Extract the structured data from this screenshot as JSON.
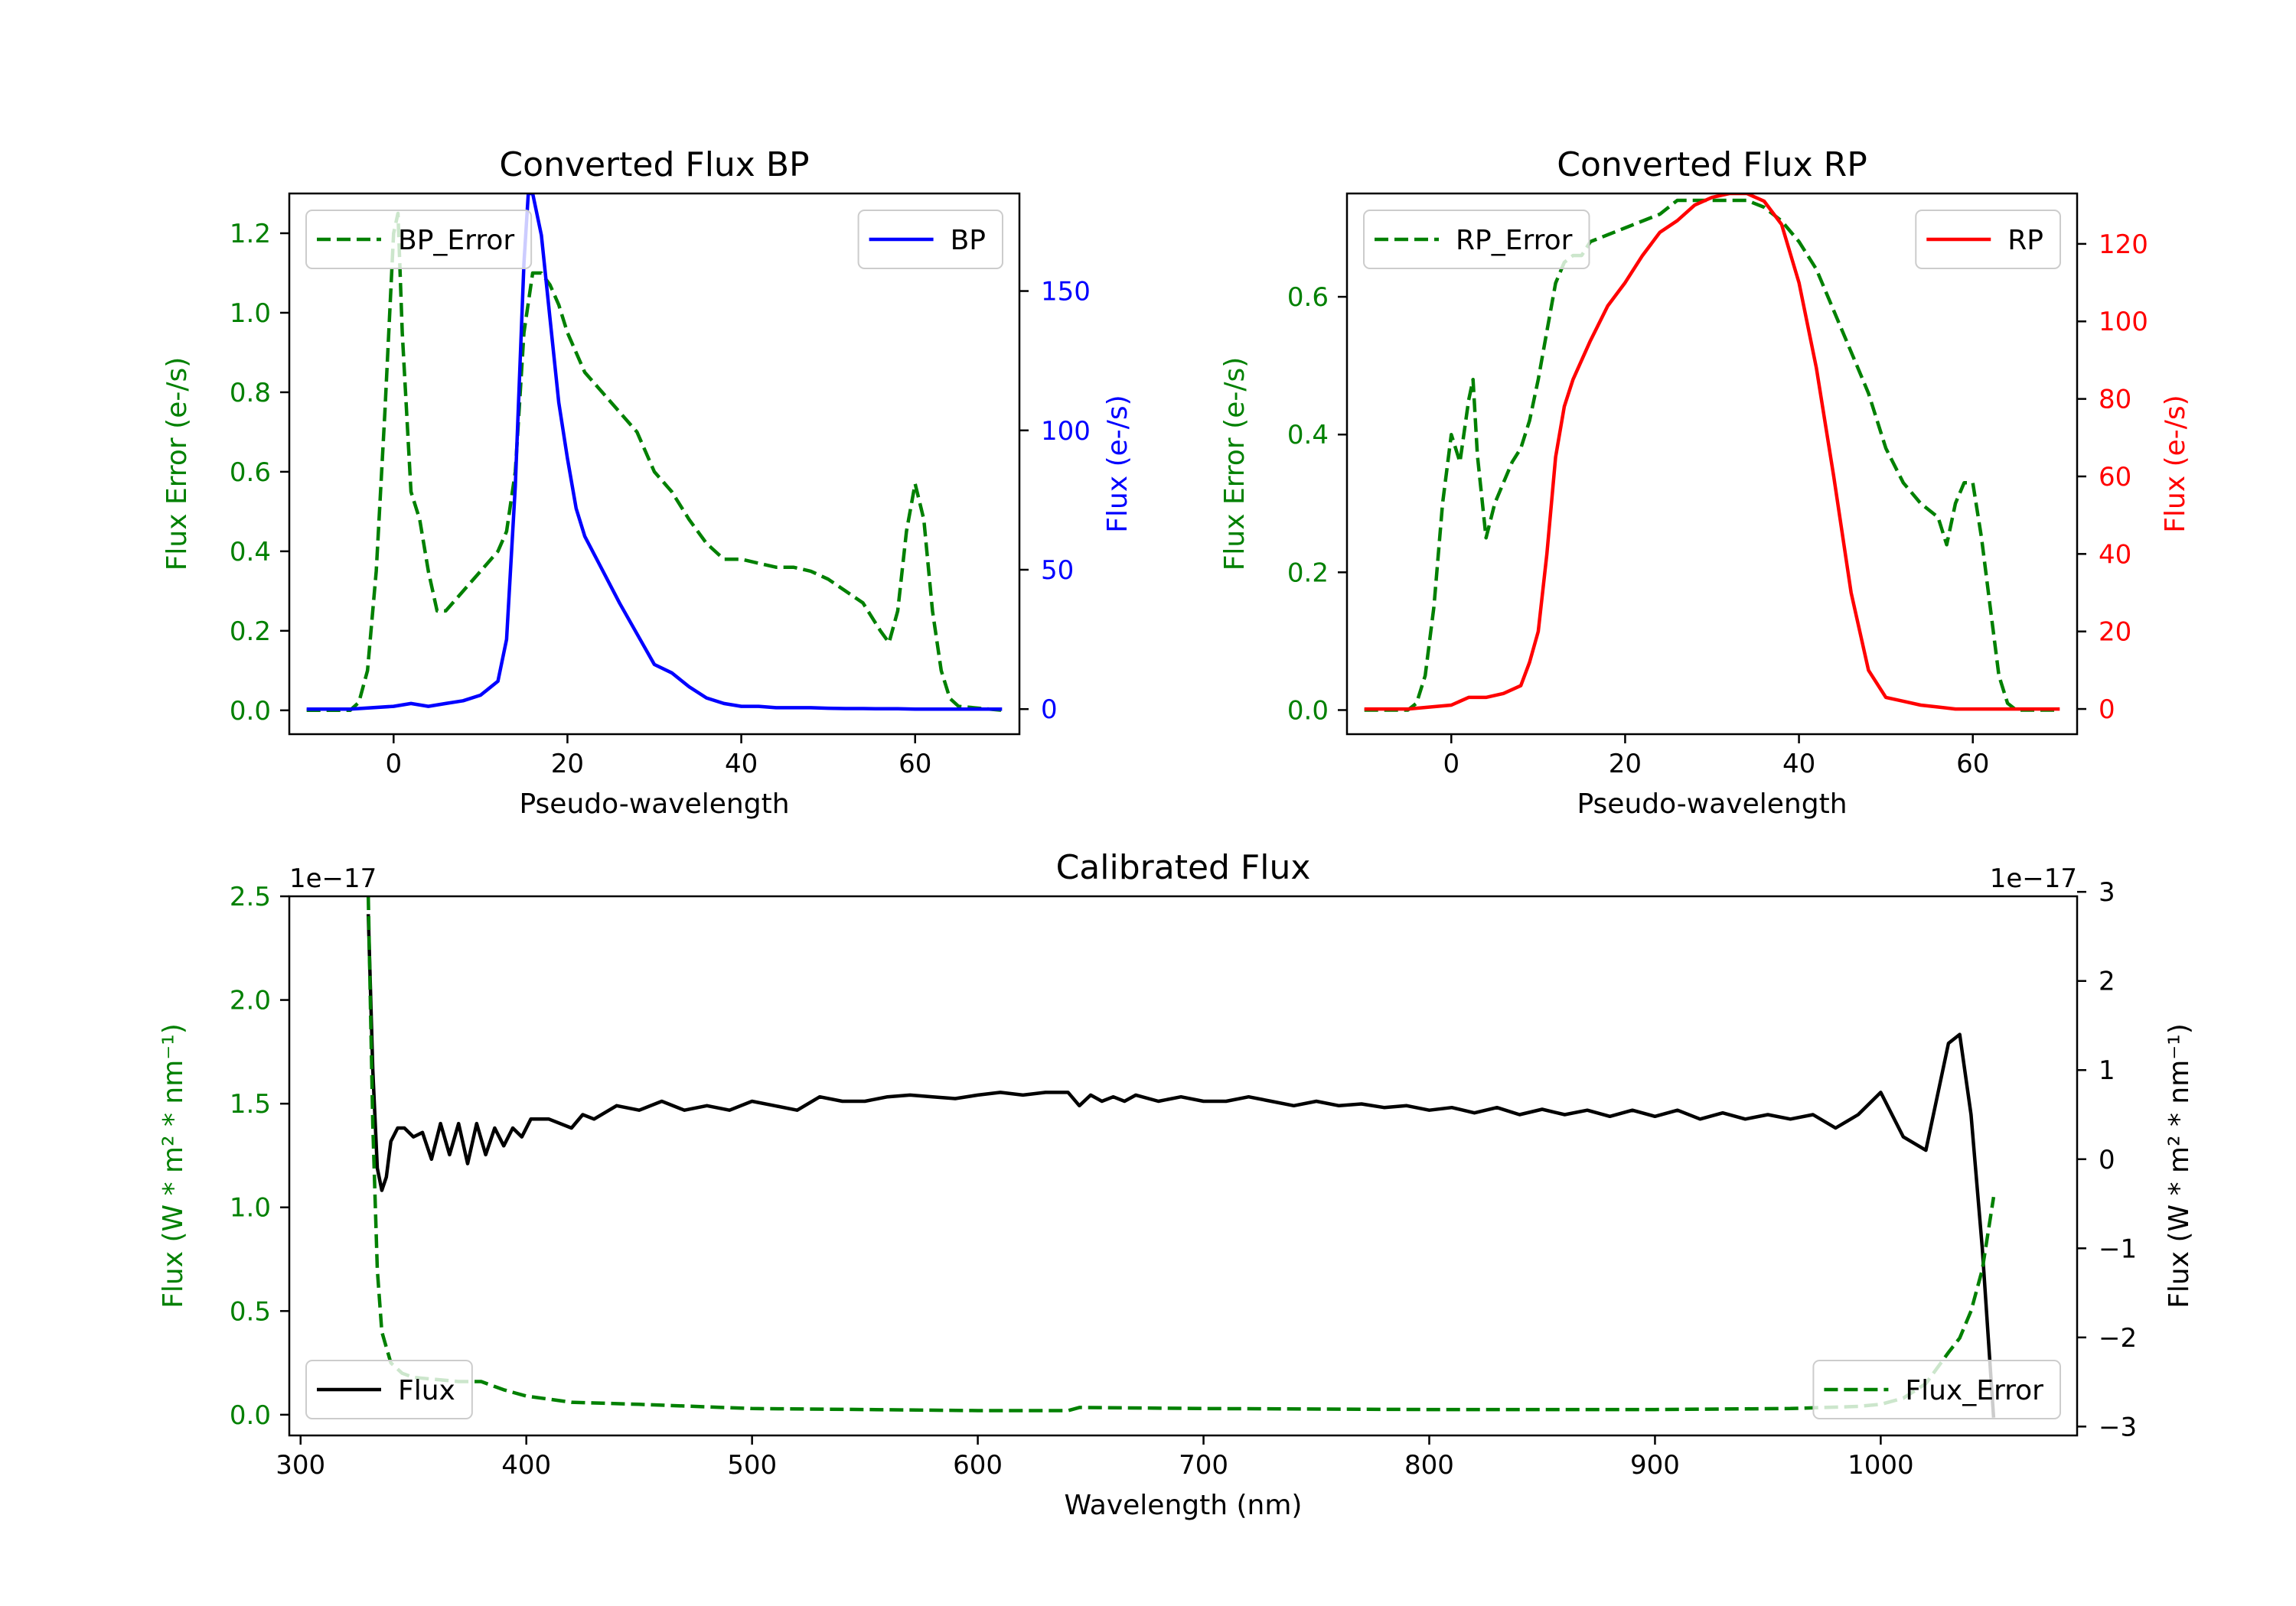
{
  "colors": {
    "green": "#008000",
    "blue": "#0000ff",
    "red": "#ff0000",
    "black": "#000000"
  },
  "chart_data": [
    {
      "type": "line",
      "title": "Converted Flux BP",
      "xlabel": "Pseudo-wavelength",
      "ylabel_left": "Flux Error (e-/s)",
      "ylabel_right": "Flux (e-/s)",
      "xlim": [
        -12,
        72
      ],
      "ylim_left": [
        -0.06,
        1.3
      ],
      "ylim_right": [
        -9,
        185
      ],
      "xticks": [
        0,
        20,
        40,
        60
      ],
      "xtick_labels": [
        "0",
        "20",
        "40",
        "60"
      ],
      "yticks_left": [
        0.0,
        0.2,
        0.4,
        0.6,
        0.8,
        1.0,
        1.2
      ],
      "ytick_labels_left": [
        "0.0",
        "0.2",
        "0.4",
        "0.6",
        "0.8",
        "1.0",
        "1.2"
      ],
      "yticks_right": [
        0,
        50,
        100,
        150
      ],
      "ytick_labels_right": [
        "0",
        "50",
        "100",
        "150"
      ],
      "legend_left": "BP_Error",
      "legend_right": "BP",
      "series": [
        {
          "name": "BP_Error",
          "axis": "left",
          "style": "dashed",
          "color": "#008000",
          "x": [
            -10,
            -5,
            -4,
            -3,
            -2,
            -1,
            0,
            0.5,
            1,
            2,
            3,
            4,
            5,
            6,
            8,
            10,
            12,
            13,
            14,
            15,
            16,
            17,
            18,
            19,
            20,
            22,
            24,
            26,
            28,
            30,
            32,
            34,
            36,
            38,
            40,
            42,
            44,
            46,
            48,
            50,
            52,
            54,
            56,
            57,
            58,
            59,
            60,
            61,
            62,
            63,
            64,
            65,
            70
          ],
          "values": [
            0,
            0,
            0.02,
            0.1,
            0.35,
            0.75,
            1.2,
            1.25,
            0.95,
            0.55,
            0.48,
            0.35,
            0.25,
            0.25,
            0.3,
            0.35,
            0.4,
            0.45,
            0.6,
            0.95,
            1.1,
            1.1,
            1.07,
            1.02,
            0.95,
            0.85,
            0.8,
            0.75,
            0.7,
            0.6,
            0.55,
            0.48,
            0.42,
            0.38,
            0.38,
            0.37,
            0.36,
            0.36,
            0.35,
            0.33,
            0.3,
            0.27,
            0.2,
            0.17,
            0.25,
            0.45,
            0.57,
            0.48,
            0.25,
            0.1,
            0.03,
            0.01,
            0
          ]
        },
        {
          "name": "BP",
          "axis": "right",
          "style": "solid",
          "color": "#0000ff",
          "x": [
            -10,
            -5,
            0,
            2,
            4,
            6,
            8,
            10,
            12,
            13,
            14,
            15,
            15.5,
            16,
            17,
            18,
            19,
            20,
            21,
            22,
            24,
            26,
            28,
            30,
            32,
            34,
            36,
            38,
            40,
            42,
            44,
            46,
            48,
            50,
            52,
            54,
            56,
            58,
            60,
            62,
            65,
            70
          ],
          "values": [
            0,
            0,
            1,
            2,
            1,
            2,
            3,
            5,
            10,
            25,
            80,
            160,
            185,
            185,
            170,
            140,
            110,
            90,
            72,
            62,
            50,
            38,
            27,
            16,
            13,
            8,
            4,
            2,
            1,
            1,
            0.5,
            0.5,
            0.5,
            0.3,
            0.2,
            0.2,
            0.1,
            0.1,
            0,
            0,
            0,
            0
          ]
        }
      ]
    },
    {
      "type": "line",
      "title": "Converted Flux RP",
      "xlabel": "Pseudo-wavelength",
      "ylabel_left": "Flux Error (e-/s)",
      "ylabel_right": "Flux (e-/s)",
      "xlim": [
        -12,
        72
      ],
      "ylim_left": [
        -0.035,
        0.75
      ],
      "ylim_right": [
        -6.5,
        133
      ],
      "xticks": [
        0,
        20,
        40,
        60
      ],
      "xtick_labels": [
        "0",
        "20",
        "40",
        "60"
      ],
      "yticks_left": [
        0.0,
        0.2,
        0.4,
        0.6
      ],
      "ytick_labels_left": [
        "0.0",
        "0.2",
        "0.4",
        "0.6"
      ],
      "yticks_right": [
        0,
        20,
        40,
        60,
        80,
        100,
        120
      ],
      "ytick_labels_right": [
        "0",
        "20",
        "40",
        "60",
        "80",
        "100",
        "120"
      ],
      "legend_left": "RP_Error",
      "legend_right": "RP",
      "series": [
        {
          "name": "RP_Error",
          "axis": "left",
          "style": "dashed",
          "color": "#008000",
          "x": [
            -10,
            -5,
            -4,
            -3,
            -2,
            -1,
            0,
            1,
            2,
            2.5,
            3,
            4,
            5,
            6,
            7,
            8,
            9,
            10,
            11,
            12,
            13,
            14,
            15,
            16,
            18,
            20,
            22,
            24,
            26,
            28,
            30,
            32,
            34,
            36,
            38,
            40,
            42,
            44,
            46,
            48,
            50,
            52,
            54,
            56,
            57,
            58,
            59,
            60,
            61,
            62,
            63,
            64,
            65,
            70
          ],
          "values": [
            0,
            0,
            0.01,
            0.05,
            0.15,
            0.3,
            0.4,
            0.36,
            0.45,
            0.48,
            0.37,
            0.25,
            0.3,
            0.33,
            0.36,
            0.38,
            0.42,
            0.48,
            0.55,
            0.62,
            0.65,
            0.66,
            0.66,
            0.68,
            0.69,
            0.7,
            0.71,
            0.72,
            0.74,
            0.74,
            0.74,
            0.74,
            0.74,
            0.73,
            0.71,
            0.68,
            0.64,
            0.58,
            0.52,
            0.46,
            0.38,
            0.33,
            0.3,
            0.28,
            0.24,
            0.3,
            0.33,
            0.33,
            0.25,
            0.15,
            0.05,
            0.01,
            0,
            0
          ]
        },
        {
          "name": "RP",
          "axis": "right",
          "style": "solid",
          "color": "#ff0000",
          "x": [
            -10,
            -5,
            0,
            2,
            4,
            6,
            8,
            9,
            10,
            11,
            12,
            13,
            14,
            16,
            18,
            20,
            22,
            24,
            26,
            28,
            30,
            32,
            34,
            36,
            38,
            40,
            42,
            44,
            46,
            48,
            50,
            52,
            54,
            56,
            58,
            60,
            65,
            70
          ],
          "values": [
            0,
            0,
            1,
            3,
            3,
            4,
            6,
            12,
            20,
            40,
            65,
            78,
            85,
            95,
            104,
            110,
            117,
            123,
            126,
            130,
            132,
            133,
            133,
            131,
            125,
            110,
            88,
            60,
            30,
            10,
            3,
            2,
            1,
            0.5,
            0,
            0,
            0,
            0
          ]
        }
      ]
    },
    {
      "type": "line",
      "title": "Calibrated Flux",
      "xlabel": "Wavelength (nm)",
      "ylabel_left": "Flux (W * m² * nm⁻¹)",
      "ylabel_right": "Flux (W * m² * nm⁻¹)",
      "offset_left": "1e−17",
      "offset_right": "1e−17",
      "xlim": [
        295,
        1087
      ],
      "ylim_left": [
        -0.1,
        2.5
      ],
      "ylim_right": [
        -3.1,
        2.95
      ],
      "xticks": [
        300,
        400,
        500,
        600,
        700,
        800,
        900,
        1000
      ],
      "xtick_labels": [
        "300",
        "400",
        "500",
        "600",
        "700",
        "800",
        "900",
        "1000"
      ],
      "yticks_left": [
        0.0,
        0.5,
        1.0,
        1.5,
        2.0,
        2.5
      ],
      "ytick_labels_left": [
        "0.0",
        "0.5",
        "1.0",
        "1.5",
        "2.0",
        "2.5"
      ],
      "yticks_right": [
        -3,
        -2,
        -1,
        0,
        1,
        2,
        3
      ],
      "ytick_labels_right": [
        "−3",
        "−2",
        "−1",
        "0",
        "1",
        "2",
        "3"
      ],
      "legend_left": "Flux",
      "legend_right": "Flux_Error",
      "series": [
        {
          "name": "Flux_Error",
          "axis": "left",
          "style": "dashed",
          "color": "#008000",
          "x": [
            330,
            332,
            334,
            336,
            340,
            345,
            350,
            360,
            370,
            380,
            390,
            400,
            420,
            450,
            500,
            550,
            600,
            640,
            645,
            700,
            800,
            900,
            960,
            990,
            1000,
            1010,
            1020,
            1030,
            1035,
            1040,
            1045,
            1050
          ],
          "values": [
            2.5,
            1.4,
            0.7,
            0.4,
            0.25,
            0.2,
            0.18,
            0.17,
            0.16,
            0.16,
            0.12,
            0.09,
            0.06,
            0.05,
            0.03,
            0.025,
            0.02,
            0.02,
            0.035,
            0.03,
            0.025,
            0.025,
            0.03,
            0.04,
            0.05,
            0.08,
            0.15,
            0.3,
            0.37,
            0.5,
            0.7,
            1.05
          ]
        },
        {
          "name": "Flux",
          "axis": "right",
          "style": "solid",
          "color": "#000000",
          "x": [
            330,
            332,
            334,
            336,
            338,
            340,
            343,
            346,
            350,
            354,
            358,
            362,
            366,
            370,
            374,
            378,
            382,
            386,
            390,
            394,
            398,
            402,
            410,
            420,
            425,
            430,
            440,
            450,
            460,
            470,
            480,
            490,
            500,
            510,
            520,
            530,
            540,
            550,
            560,
            570,
            580,
            590,
            600,
            610,
            620,
            630,
            640,
            645,
            650,
            655,
            660,
            665,
            670,
            680,
            690,
            700,
            710,
            720,
            730,
            740,
            750,
            760,
            770,
            780,
            790,
            800,
            810,
            820,
            830,
            840,
            850,
            860,
            870,
            880,
            890,
            900,
            910,
            920,
            930,
            940,
            950,
            960,
            970,
            980,
            990,
            1000,
            1010,
            1020,
            1030,
            1035,
            1040,
            1045,
            1050
          ],
          "values": [
            2.75,
            1.0,
            -0.1,
            -0.35,
            -0.2,
            0.2,
            0.35,
            0.35,
            0.25,
            0.3,
            0.0,
            0.4,
            0.05,
            0.4,
            -0.05,
            0.4,
            0.05,
            0.35,
            0.15,
            0.35,
            0.25,
            0.45,
            0.45,
            0.35,
            0.5,
            0.45,
            0.6,
            0.55,
            0.65,
            0.55,
            0.6,
            0.55,
            0.65,
            0.6,
            0.55,
            0.7,
            0.65,
            0.65,
            0.7,
            0.72,
            0.7,
            0.68,
            0.72,
            0.75,
            0.72,
            0.75,
            0.75,
            0.6,
            0.72,
            0.65,
            0.7,
            0.65,
            0.72,
            0.65,
            0.7,
            0.65,
            0.65,
            0.7,
            0.65,
            0.6,
            0.65,
            0.6,
            0.62,
            0.58,
            0.6,
            0.55,
            0.58,
            0.52,
            0.58,
            0.5,
            0.56,
            0.5,
            0.55,
            0.48,
            0.55,
            0.48,
            0.55,
            0.45,
            0.52,
            0.45,
            0.5,
            0.45,
            0.5,
            0.35,
            0.5,
            0.75,
            0.25,
            0.1,
            1.3,
            1.4,
            0.5,
            -1.0,
            -2.9
          ]
        }
      ]
    }
  ]
}
